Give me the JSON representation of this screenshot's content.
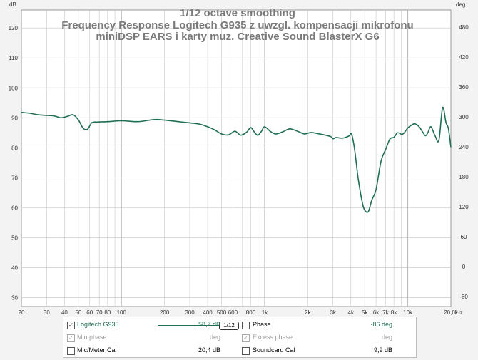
{
  "axis_unit_left": "dB",
  "axis_unit_right": "deg",
  "axis_unit_x": "Hz",
  "colors": {
    "trace": "#1f6f52",
    "grid": "#c8c8c8",
    "plot_bg": "#ffffff"
  },
  "chart_data": {
    "type": "line",
    "title": [
      "1/12 octave smoothing",
      "Frequency Response Logitech G935 z uwzgl. kompensacji mikrofonu",
      "miniDSP EARS i karty muz. Creative Sound BlasterX G6"
    ],
    "xlabel": "",
    "ylabel": "",
    "x_scale": "log",
    "xlim": [
      20,
      20000
    ],
    "ylim": [
      27,
      126
    ],
    "ylim_right_deg": [
      -80,
      514
    ],
    "grid": true,
    "x_ticks": [
      {
        "v": 20,
        "label": "20"
      },
      {
        "v": 30,
        "label": "30"
      },
      {
        "v": 40,
        "label": "40"
      },
      {
        "v": 50,
        "label": "50"
      },
      {
        "v": 60,
        "label": "60"
      },
      {
        "v": 70,
        "label": "70"
      },
      {
        "v": 80,
        "label": "80"
      },
      {
        "v": 100,
        "label": "100"
      },
      {
        "v": 200,
        "label": "200"
      },
      {
        "v": 300,
        "label": "300"
      },
      {
        "v": 400,
        "label": "400"
      },
      {
        "v": 500,
        "label": "500"
      },
      {
        "v": 600,
        "label": "600"
      },
      {
        "v": 800,
        "label": "800"
      },
      {
        "v": 1000,
        "label": "1k"
      },
      {
        "v": 2000,
        "label": "2k"
      },
      {
        "v": 3000,
        "label": "3k"
      },
      {
        "v": 4000,
        "label": "4k"
      },
      {
        "v": 5000,
        "label": "5k"
      },
      {
        "v": 6000,
        "label": "6k"
      },
      {
        "v": 7000,
        "label": "7k"
      },
      {
        "v": 8000,
        "label": "8k"
      },
      {
        "v": 10000,
        "label": "10k"
      },
      {
        "v": 20000,
        "label": "20,0k"
      }
    ],
    "y_ticks": [
      30,
      40,
      50,
      60,
      70,
      80,
      90,
      100,
      110,
      120
    ],
    "y2_ticks": [
      -60,
      0,
      60,
      120,
      180,
      240,
      300,
      360,
      420,
      480
    ],
    "series": [
      {
        "name": "Logitech G935",
        "x": [
          20,
          23,
          26,
          30,
          34,
          38,
          42,
          46,
          50,
          54,
          58,
          62,
          68,
          80,
          100,
          130,
          170,
          200,
          250,
          300,
          350,
          400,
          450,
          500,
          560,
          620,
          680,
          750,
          800,
          860,
          900,
          950,
          1000,
          1100,
          1200,
          1350,
          1500,
          1700,
          1900,
          2100,
          2300,
          2600,
          2900,
          3000,
          3150,
          3300,
          3500,
          3700,
          3900,
          4050,
          4250,
          4500,
          4800,
          5000,
          5300,
          5600,
          6000,
          6500,
          7000,
          7500,
          8000,
          8500,
          9200,
          10000,
          10600,
          11200,
          12000,
          12800,
          13300,
          13800,
          14500,
          15500,
          16500,
          17500,
          18500,
          19200,
          20000
        ],
        "y": [
          91.8,
          91.5,
          91.0,
          90.8,
          90.6,
          90.0,
          90.5,
          91.0,
          89.3,
          86.5,
          86.2,
          88.3,
          88.6,
          88.7,
          89.0,
          88.7,
          89.4,
          89.2,
          88.7,
          88.3,
          87.9,
          87.0,
          85.9,
          84.6,
          84.3,
          85.5,
          84.2,
          85.2,
          86.7,
          84.8,
          84.2,
          85.5,
          87.0,
          85.4,
          84.6,
          85.4,
          86.3,
          85.5,
          84.6,
          85.1,
          84.8,
          84.3,
          83.7,
          83.0,
          83.4,
          83.3,
          83.2,
          83.5,
          84.0,
          84.5,
          79.5,
          69.8,
          62.0,
          59.2,
          58.7,
          62.5,
          66.0,
          75.5,
          79.4,
          82.9,
          83.5,
          85.0,
          84.5,
          86.6,
          87.5,
          88.0,
          87.0,
          85.0,
          84.0,
          85.0,
          87.0,
          84.0,
          82.5,
          93.4,
          88.3,
          86.5,
          80.2
        ]
      }
    ]
  },
  "legend": {
    "logitech_label": "Logitech G935",
    "logitech_checked": "✓",
    "smoothing_label": "1/12",
    "logitech_value": "58,7 dB",
    "phase_label": "Phase",
    "phase_value": "-86 deg",
    "min_phase_label": "Min phase",
    "min_phase_checked": "✓",
    "min_phase_unit": "deg",
    "excess_phase_label": "Excess phase",
    "excess_phase_checked": "✓",
    "excess_phase_unit": "deg",
    "mic_cal_label": "Mic/Meter Cal",
    "mic_cal_value": "20,4 dB",
    "soundcard_cal_label": "Soundcard Cal",
    "soundcard_cal_value": "9,9 dB"
  }
}
